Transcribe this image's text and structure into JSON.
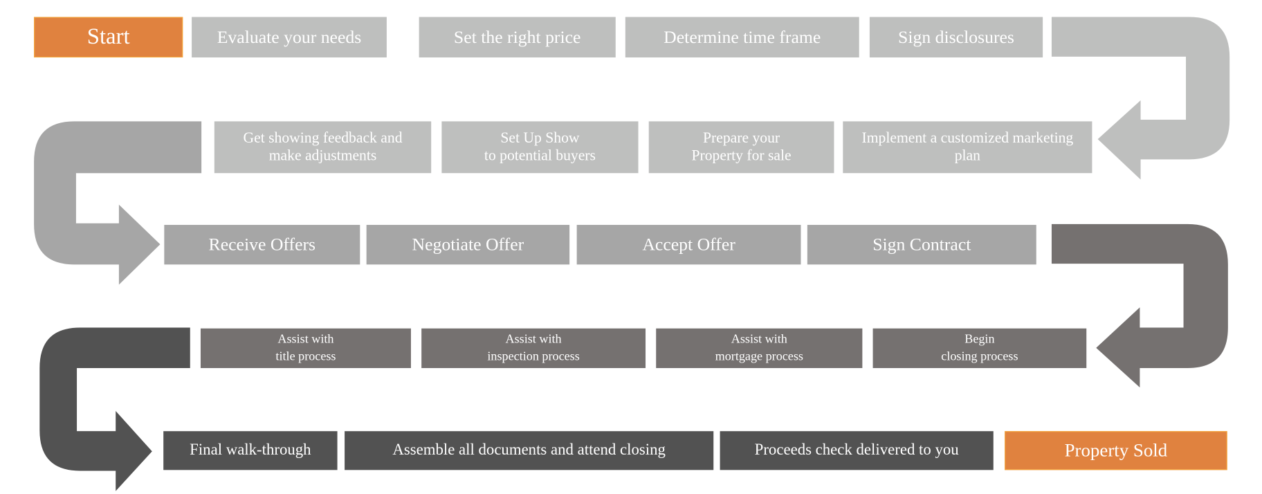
{
  "colors": {
    "accent": "#E0823F",
    "row1": "#BEBFBE",
    "row2": "#BEBFBE",
    "row3": "#A6A6A6",
    "row4": "#757170",
    "row5": "#525252"
  },
  "start": "Start",
  "end": "Property Sold",
  "row1": [
    "Evaluate your needs",
    "Set the right price",
    "Determine time frame",
    "Sign disclosures"
  ],
  "row2": [
    {
      "line1": "Get showing feedback and",
      "line2": "make adjustments"
    },
    {
      "line1": "Set Up Show",
      "line2": "to potential buyers"
    },
    {
      "line1": "Prepare your",
      "line2": "Property for sale"
    },
    {
      "line1": "Implement a customized marketing",
      "line2": "plan"
    }
  ],
  "row3": [
    "Receive Offers",
    "Negotiate Offer",
    "Accept Offer",
    "Sign Contract"
  ],
  "row4": [
    {
      "line1": "Assist with",
      "line2": "title process"
    },
    {
      "line1": "Assist with",
      "line2": "inspection process"
    },
    {
      "line1": "Assist with",
      "line2": "mortgage process"
    },
    {
      "line1": "Begin",
      "line2": "closing process"
    }
  ],
  "row5": [
    "Final walk-through",
    "Assemble all documents and attend closing",
    "Proceeds check delivered to you"
  ]
}
